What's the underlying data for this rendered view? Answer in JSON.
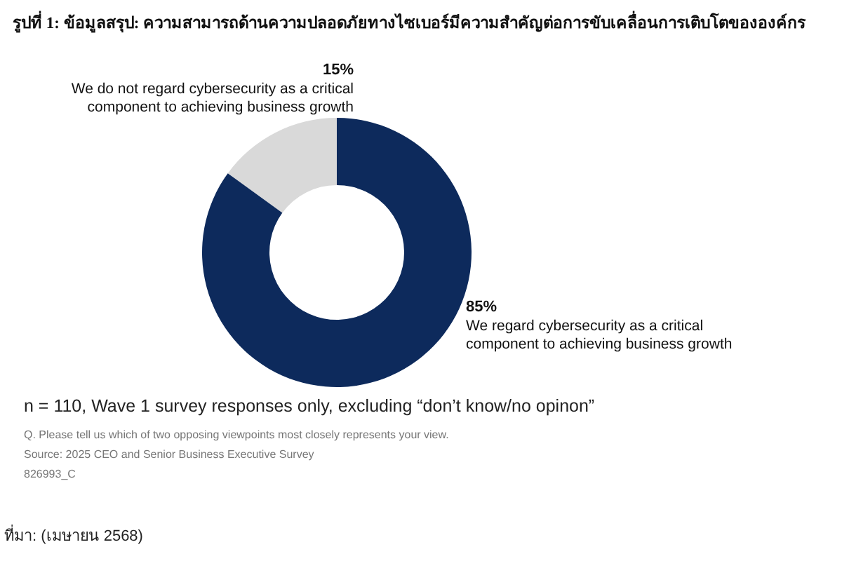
{
  "chart_data": {
    "type": "donut",
    "title": "รูปที่ 1: ข้อมูลสรุป: ความสามารถด้านความปลอดภัยทางไซเบอร์มีความสำคัญต่อการขับเคลื่อนการเติบโตขององค์กร",
    "categories": [
      "We do not regard cybersecurity as a critical component to achieving business growth",
      "We regard cybersecurity as a critical component to achieving business growth"
    ],
    "values": [
      15,
      85
    ],
    "colors": [
      "#d9d9d9",
      "#0d2a5c"
    ],
    "value_labels": [
      "15%",
      "85%"
    ],
    "legend": false,
    "annotations": [
      "n = 110, Wave 1 survey responses only, excluding “don’t know/no opinon”",
      "Q. Please tell us which of two opposing viewpoints most closely represents your view.",
      "Source: 2025 CEO and Senior Business Executive Survey",
      "826993_C",
      "ที่มา: (เมษายน 2568)"
    ]
  }
}
